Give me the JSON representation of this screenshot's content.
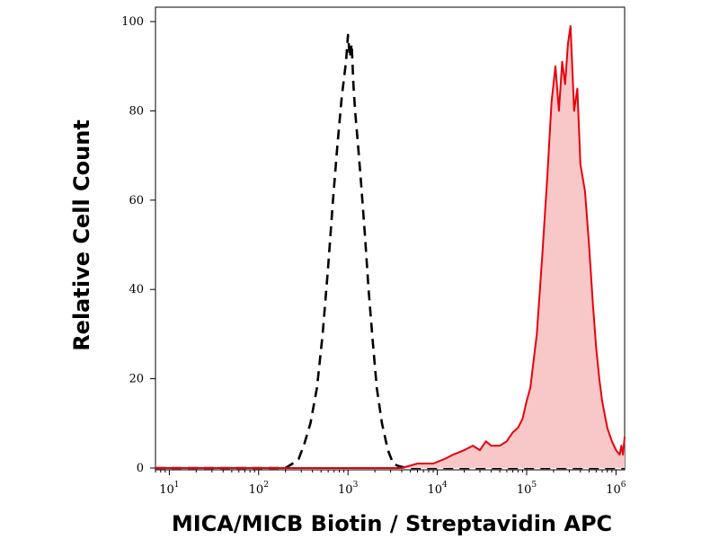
{
  "chart_data": {
    "type": "area",
    "title": "",
    "xlabel": "MICA/MICB Biotin / Streptavidin APC",
    "ylabel": "Relative Cell Count",
    "x_scale": "log10",
    "xlim": [
      7,
      1250000
    ],
    "ylim": [
      0,
      100
    ],
    "x_ticks": [
      {
        "value": 10,
        "base": "10",
        "exp": "1"
      },
      {
        "value": 100,
        "base": "10",
        "exp": "2"
      },
      {
        "value": 1000,
        "base": "10",
        "exp": "3"
      },
      {
        "value": 10000,
        "base": "10",
        "exp": "4"
      },
      {
        "value": 100000,
        "base": "10",
        "exp": "5"
      },
      {
        "value": 1000000,
        "base": "10",
        "exp": "6"
      }
    ],
    "y_ticks": [
      {
        "value": 0,
        "label": "0"
      },
      {
        "value": 20,
        "label": "20"
      },
      {
        "value": 40,
        "label": "40"
      },
      {
        "value": 60,
        "label": "60"
      },
      {
        "value": 80,
        "label": "80"
      },
      {
        "value": 100,
        "label": "100"
      }
    ],
    "grid": false,
    "legend": "none",
    "series": [
      {
        "style": "dashed",
        "color": "#000000",
        "fill": "none",
        "x": [
          7,
          200,
          240,
          280,
          320,
          380,
          450,
          520,
          600,
          680,
          760,
          850,
          950,
          1000,
          1050,
          1100,
          1150,
          1200,
          1300,
          1400,
          1550,
          1700,
          1900,
          2100,
          2400,
          2800,
          3200,
          3600,
          4500,
          1250000
        ],
        "y": [
          0,
          0,
          1,
          2,
          5,
          10,
          18,
          30,
          45,
          60,
          72,
          83,
          91,
          97,
          92,
          95,
          86,
          80,
          72,
          64,
          52,
          40,
          28,
          18,
          10,
          4,
          1,
          0.5,
          0,
          0
        ]
      },
      {
        "style": "solid",
        "color": "#e8000b",
        "fill": "#f8c8c8",
        "x": [
          7,
          4000,
          6000,
          9000,
          12000,
          15000,
          20000,
          25000,
          30000,
          35000,
          40000,
          50000,
          60000,
          70000,
          80000,
          90000,
          100000,
          110000,
          130000,
          150000,
          170000,
          190000,
          210000,
          230000,
          250000,
          270000,
          290000,
          310000,
          340000,
          370000,
          400000,
          450000,
          500000,
          550000,
          600000,
          650000,
          700000,
          800000,
          900000,
          1000000,
          1100000,
          1150000,
          1200000,
          1250000
        ],
        "y": [
          0,
          0,
          1,
          1,
          2,
          3,
          4,
          5,
          4,
          6,
          5,
          5,
          6,
          8,
          9,
          11,
          15,
          18,
          30,
          48,
          65,
          82,
          90,
          80,
          91,
          86,
          95,
          99,
          80,
          85,
          68,
          62,
          50,
          37,
          27,
          20,
          15,
          9,
          6,
          4,
          3,
          5,
          3,
          7
        ]
      }
    ]
  }
}
